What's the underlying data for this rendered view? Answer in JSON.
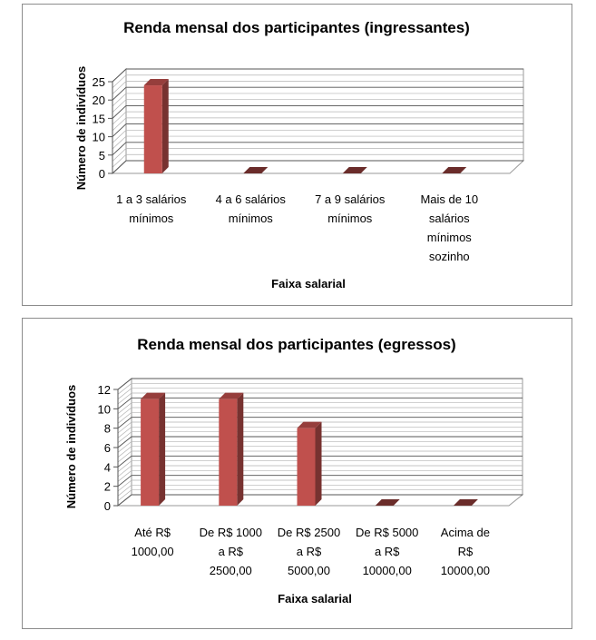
{
  "chart_data": [
    {
      "type": "bar",
      "title": "Renda mensal dos participantes (ingressantes)",
      "xlabel": "Faixa salarial",
      "ylabel": "Número de indivíduos",
      "categories": [
        [
          "1 a 3 salários",
          "mínimos"
        ],
        [
          "4 a 6 salários",
          "mínimos"
        ],
        [
          "7 a 9 salários",
          "mínimos"
        ],
        [
          "Mais de 10",
          "salários",
          "mínimos",
          "sozinho"
        ]
      ],
      "values": [
        24,
        0,
        0,
        0
      ],
      "ylim": [
        0,
        25
      ],
      "yticks": [
        "0",
        "5",
        "10",
        "15",
        "20",
        "25"
      ],
      "grid": true,
      "legend": "none",
      "bar_color": "#c0504d"
    },
    {
      "type": "bar",
      "title": "Renda mensal dos participantes (egressos)",
      "xlabel": "Faixa salarial",
      "ylabel": "Número de indivíduos",
      "categories": [
        [
          "Até R$",
          "1000,00"
        ],
        [
          "De R$ 1000",
          "a R$",
          "2500,00"
        ],
        [
          "De R$ 2500",
          "a R$",
          "5000,00"
        ],
        [
          "De R$ 5000",
          "a R$",
          "10000,00"
        ],
        [
          "Acima de",
          "R$",
          "10000,00"
        ]
      ],
      "values": [
        11,
        11,
        8,
        0,
        0
      ],
      "ylim": [
        0,
        12
      ],
      "yticks": [
        "0",
        "2",
        "4",
        "6",
        "8",
        "10",
        "12"
      ],
      "grid": true,
      "legend": "none",
      "bar_color": "#c0504d"
    }
  ]
}
